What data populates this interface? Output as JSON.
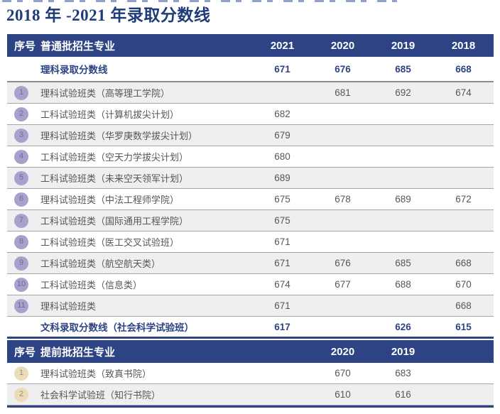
{
  "title": "2018 年 -2021 年录取分数线",
  "colors": {
    "header_bg": "#2d4384",
    "title_blue": "#1d3c78",
    "alt_row_bg": "#efeff1",
    "badge_purple": "#a8a1cb",
    "badge_tan": "#ebdcba"
  },
  "regular_table": {
    "no_header": "序号",
    "major_header": "普通批招生专业",
    "years": [
      "2021",
      "2020",
      "2019",
      "2018"
    ],
    "science_line": {
      "label": "理科录取分数线",
      "values": [
        "671",
        "676",
        "685",
        "668"
      ]
    },
    "rows": [
      {
        "no": "1",
        "name": "理科试验班类（高等理工学院）",
        "values": [
          "",
          "681",
          "692",
          "674"
        ]
      },
      {
        "no": "2",
        "name": "工科试验班类（计算机拔尖计划）",
        "values": [
          "682",
          "",
          "",
          ""
        ]
      },
      {
        "no": "3",
        "name": "理科试验班类（华罗庚数学拔尖计划）",
        "values": [
          "679",
          "",
          "",
          ""
        ]
      },
      {
        "no": "4",
        "name": "工科试验班类（空天力学拔尖计划）",
        "values": [
          "680",
          "",
          "",
          ""
        ]
      },
      {
        "no": "5",
        "name": "工科试验班类（未来空天领军计划）",
        "values": [
          "689",
          "",
          "",
          ""
        ]
      },
      {
        "no": "6",
        "name": "理科试验班类（中法工程师学院）",
        "values": [
          "675",
          "678",
          "689",
          "672"
        ]
      },
      {
        "no": "7",
        "name": "工科试验班类（国际通用工程学院）",
        "values": [
          "675",
          "",
          "",
          ""
        ]
      },
      {
        "no": "8",
        "name": "工科试验班类（医工交叉试验班）",
        "values": [
          "671",
          "",
          "",
          ""
        ]
      },
      {
        "no": "9",
        "name": "工科试验班类（航空航天类）",
        "values": [
          "671",
          "676",
          "685",
          "668"
        ]
      },
      {
        "no": "10",
        "name": "工科试验班类（信息类）",
        "values": [
          "674",
          "677",
          "688",
          "670"
        ]
      },
      {
        "no": "11",
        "name": "理科试验班类",
        "values": [
          "671",
          "",
          "",
          "668"
        ]
      }
    ],
    "arts_line": {
      "label": "文科录取分数线（社会科学试验班）",
      "values": [
        "617",
        "",
        "626",
        "615"
      ]
    }
  },
  "advance_table": {
    "no_header": "序号",
    "major_header": "提前批招生专业",
    "years": [
      "2020",
      "2019"
    ],
    "rows": [
      {
        "no": "1",
        "name": "理科试验班类（致真书院）",
        "values": [
          "670",
          "683"
        ]
      },
      {
        "no": "2",
        "name": "社会科学试验班（知行书院）",
        "values": [
          "610",
          "616"
        ]
      }
    ]
  }
}
